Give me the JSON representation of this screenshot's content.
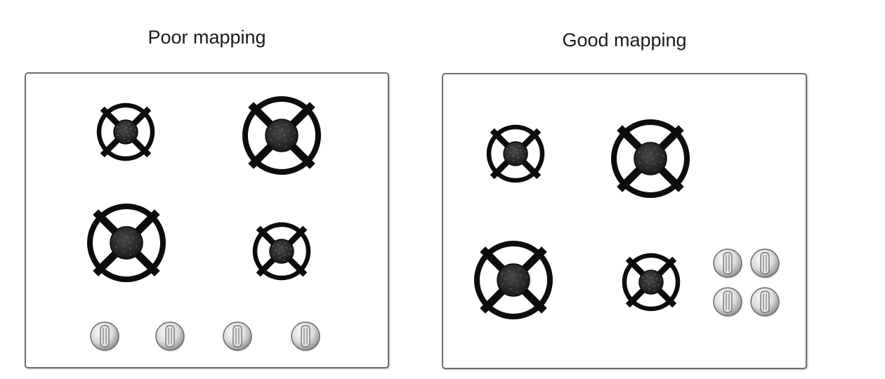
{
  "poor": {
    "title": "Poor mapping"
  },
  "good": {
    "title": "Good mapping"
  },
  "colors": {
    "grate": "#0c0c0c",
    "burner_cap": "#2e2e2e",
    "panel_border": "#6e6e6e",
    "knob_highlight": "#ffffff",
    "knob_shadow": "#8a8a8a"
  },
  "icons": {
    "burner": "gas-burner-grate-icon",
    "knob": "stove-knob-icon"
  },
  "burner_sizes": [
    "small",
    "large",
    "large",
    "small"
  ],
  "knob_count": 4
}
